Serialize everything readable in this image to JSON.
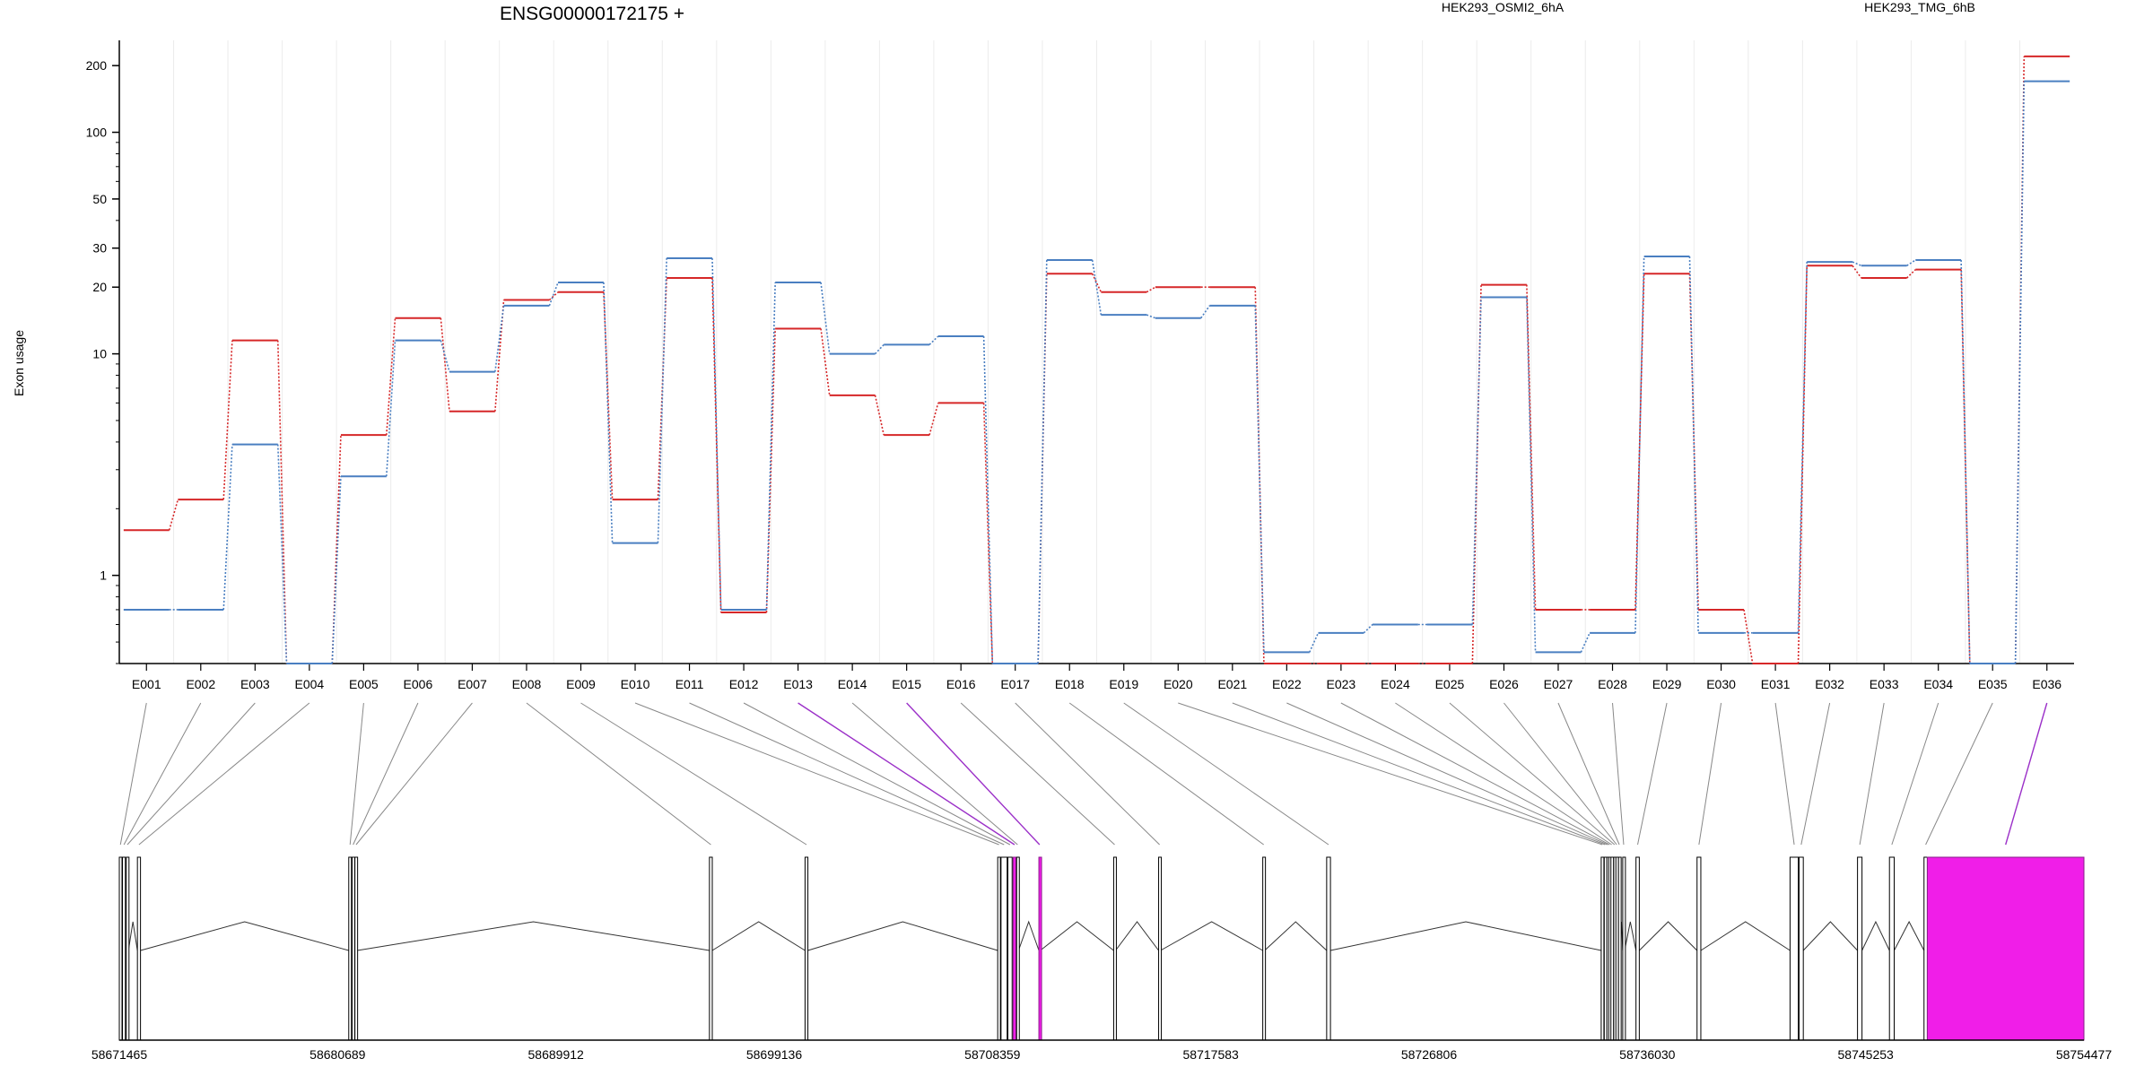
{
  "chart_data": {
    "type": "line",
    "title": "ENSG00000172175 +",
    "ylabel": "Exon usage",
    "yscale": "log",
    "ylim": [
      0.4,
      260
    ],
    "yticks": [
      1,
      10,
      20,
      30,
      50,
      100,
      200
    ],
    "legend_placement": "top",
    "grid": "vertical-light",
    "categories": [
      "E001",
      "E002",
      "E003",
      "E004",
      "E005",
      "E006",
      "E007",
      "E008",
      "E009",
      "E010",
      "E011",
      "E012",
      "E013",
      "E014",
      "E015",
      "E016",
      "E017",
      "E018",
      "E019",
      "E020",
      "E021",
      "E022",
      "E023",
      "E024",
      "E025",
      "E026",
      "E027",
      "E028",
      "E029",
      "E030",
      "E031",
      "E032",
      "E033",
      "E034",
      "E035",
      "E036"
    ],
    "series": [
      {
        "name": "HEK293_OSMI2_6hA",
        "color": "#d62728",
        "values": [
          1.6,
          2.2,
          11.5,
          0.4,
          4.3,
          14.5,
          5.5,
          17.5,
          19,
          2.2,
          22,
          0.68,
          13,
          6.5,
          4.3,
          6,
          0.4,
          23,
          19,
          20,
          20,
          0.4,
          0.4,
          0.4,
          0.4,
          20.5,
          0.7,
          0.7,
          23,
          0.7,
          0.4,
          25,
          22,
          24,
          0.4,
          220
        ]
      },
      {
        "name": "HEK293_TMG_6hB",
        "color": "#4a7fc1",
        "values": [
          0.7,
          0.7,
          3.9,
          0.4,
          2.8,
          11.5,
          8.3,
          16.5,
          21,
          1.4,
          27,
          0.7,
          21,
          10,
          11,
          12,
          0.4,
          26.5,
          15,
          14.5,
          16.5,
          0.45,
          0.55,
          0.6,
          0.6,
          18,
          0.45,
          0.55,
          27.5,
          0.55,
          0.55,
          26,
          25,
          26.5,
          0.4,
          170
        ]
      }
    ],
    "exon_colors": {
      "default": "#ffffff",
      "highlight": "#f01ee8",
      "connector_default": "#888888",
      "connector_highlight": "#9b30c8"
    },
    "highlighted_exons": [
      "E013",
      "E015",
      "E036"
    ],
    "genomic_ticks": [
      "58671465",
      "58680689",
      "58689912",
      "58699136",
      "58708359",
      "58717583",
      "58726806",
      "58736030",
      "58745253",
      "58754477"
    ],
    "genome_range": [
      58671465,
      58754477
    ],
    "gene_model": {
      "exons": [
        {
          "id": "E001",
          "start": 58671465,
          "end": 58671560
        },
        {
          "id": "E002",
          "start": 58671600,
          "end": 58671720
        },
        {
          "id": "E003",
          "start": 58671760,
          "end": 58671850
        },
        {
          "id": "E004",
          "start": 58672230,
          "end": 58672360
        },
        {
          "id": "E005",
          "start": 58681160,
          "end": 58681270
        },
        {
          "id": "E006",
          "start": 58681300,
          "end": 58681390
        },
        {
          "id": "E007",
          "start": 58681420,
          "end": 58681520
        },
        {
          "id": "E008",
          "start": 58696400,
          "end": 58696520
        },
        {
          "id": "E009",
          "start": 58700440,
          "end": 58700560
        },
        {
          "id": "E010",
          "start": 58708580,
          "end": 58708690
        },
        {
          "id": "E011",
          "start": 58708720,
          "end": 58708980
        },
        {
          "id": "E012",
          "start": 58709010,
          "end": 58709190
        },
        {
          "id": "E013",
          "start": 58709230,
          "end": 58709350
        },
        {
          "id": "E014",
          "start": 58709380,
          "end": 58709460
        },
        {
          "id": "E015",
          "start": 58710320,
          "end": 58710380
        },
        {
          "id": "E016",
          "start": 58713480,
          "end": 58713560
        },
        {
          "id": "E017",
          "start": 58715380,
          "end": 58715460
        },
        {
          "id": "E018",
          "start": 58719780,
          "end": 58719860
        },
        {
          "id": "E019",
          "start": 58722480,
          "end": 58722640
        },
        {
          "id": "E020",
          "start": 58734080,
          "end": 58734180
        },
        {
          "id": "E021",
          "start": 58734210,
          "end": 58734290
        },
        {
          "id": "E022",
          "start": 58734320,
          "end": 58734380
        },
        {
          "id": "E023",
          "start": 58734400,
          "end": 58734460
        },
        {
          "id": "E024",
          "start": 58734490,
          "end": 58734560
        },
        {
          "id": "E025",
          "start": 58734610,
          "end": 58734680
        },
        {
          "id": "E026",
          "start": 58734700,
          "end": 58734770
        },
        {
          "id": "E027",
          "start": 58734810,
          "end": 58734880
        },
        {
          "id": "E028",
          "start": 58734990,
          "end": 58735070
        },
        {
          "id": "E029",
          "start": 58735550,
          "end": 58735690
        },
        {
          "id": "E030",
          "start": 58738130,
          "end": 58738290
        },
        {
          "id": "E031",
          "start": 58742060,
          "end": 58742410
        },
        {
          "id": "E032",
          "start": 58742440,
          "end": 58742620
        },
        {
          "id": "E033",
          "start": 58744910,
          "end": 58745100
        },
        {
          "id": "E034",
          "start": 58746260,
          "end": 58746460
        },
        {
          "id": "E035",
          "start": 58747720,
          "end": 58747860
        },
        {
          "id": "E036",
          "start": 58747860,
          "end": 58754477
        }
      ]
    }
  }
}
